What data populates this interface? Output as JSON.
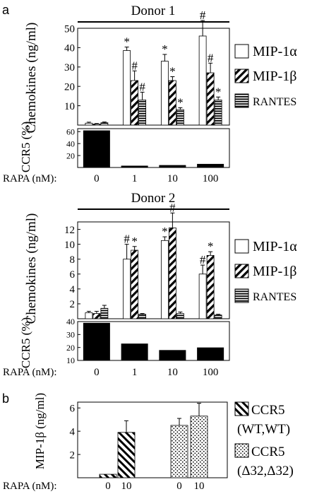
{
  "panel_labels": [
    "a",
    "b"
  ],
  "chart_data": [
    {
      "id": "donor1-chemokines",
      "type": "bar",
      "title": "Donor 1",
      "ylabel": "Chemokines (ng/ml)",
      "xlabel": "RAPA (nM):",
      "categories": [
        "0",
        "1",
        "10",
        "100"
      ],
      "ylim": [
        0,
        50
      ],
      "yticks": [
        10,
        20,
        30,
        40,
        50
      ],
      "series": [
        {
          "name": "MIP-1α",
          "pattern": "white",
          "values": [
            1,
            38.5,
            33,
            46
          ],
          "errors": [
            0.5,
            1.8,
            3.5,
            8
          ],
          "marks": [
            "",
            "*",
            "*",
            "#"
          ]
        },
        {
          "name": "MIP-1β",
          "pattern": "diagonal",
          "values": [
            0.5,
            23,
            23,
            27
          ],
          "errors": [
            0.3,
            5,
            2,
            5
          ],
          "marks": [
            "",
            "#",
            "*",
            "#"
          ]
        },
        {
          "name": "RANTES",
          "pattern": "horizontal",
          "values": [
            1.2,
            13,
            8,
            13
          ],
          "errors": [
            0.4,
            4,
            1,
            1.5
          ],
          "marks": [
            "",
            "#",
            "*",
            "*"
          ]
        }
      ],
      "legend": "right"
    },
    {
      "id": "donor1-ccr5",
      "type": "bar",
      "ylabel": "CCR5 (%)",
      "categories": [
        "0",
        "1",
        "10",
        "100"
      ],
      "ylim": [
        0,
        65
      ],
      "yticks": [
        20,
        40,
        60
      ],
      "series": [
        {
          "values": [
            62,
            3,
            4,
            6
          ]
        }
      ]
    },
    {
      "id": "donor2-chemokines",
      "type": "bar",
      "title": "Donor 2",
      "ylabel": "Chemokines (ng/ml)",
      "xlabel": "RAPA (nM):",
      "categories": [
        "0",
        "1",
        "10",
        "100"
      ],
      "ylim": [
        0,
        13
      ],
      "yticks": [
        2,
        4,
        6,
        8,
        10,
        12
      ],
      "series": [
        {
          "name": "MIP-1α",
          "pattern": "white",
          "values": [
            0.8,
            8,
            10.5,
            6
          ],
          "errors": [
            0.2,
            2,
            0.5,
            1.2
          ],
          "marks": [
            "",
            "#",
            "*",
            "#"
          ]
        },
        {
          "name": "MIP-1β",
          "pattern": "diagonal",
          "values": [
            0.7,
            9.2,
            12.2,
            8.5
          ],
          "errors": [
            0.3,
            0.5,
            2,
            0.5
          ],
          "marks": [
            "",
            "*",
            "#",
            "*"
          ]
        },
        {
          "name": "RANTES",
          "pattern": "horizontal",
          "values": [
            1.4,
            0.6,
            0.7,
            0.5
          ],
          "errors": [
            0.4,
            0.1,
            0.2,
            0.1
          ],
          "marks": [
            "",
            "",
            "",
            ""
          ]
        }
      ],
      "legend": "right"
    },
    {
      "id": "donor2-ccr5",
      "type": "bar",
      "ylabel": "CCR5 (%)",
      "categories": [
        "0",
        "1",
        "10",
        "100"
      ],
      "ylim": [
        10,
        40
      ],
      "yticks": [
        10,
        20,
        30,
        40
      ],
      "series": [
        {
          "values": [
            39,
            23,
            18,
            20
          ]
        }
      ]
    },
    {
      "id": "panel-b",
      "type": "bar",
      "ylabel": "MIP-1β (ng/ml)",
      "xlabel": "RAPA (nM):",
      "categories": [
        "0",
        "10",
        "0",
        "10"
      ],
      "ylim": [
        0,
        6.5
      ],
      "yticks": [
        2,
        4,
        6
      ],
      "bars": [
        {
          "value": 0.3,
          "error": 0,
          "pattern": "diagonal-rev"
        },
        {
          "value": 3.9,
          "error": 1,
          "pattern": "diagonal-rev"
        },
        {
          "value": 4.5,
          "error": 0.6,
          "pattern": "dots"
        },
        {
          "value": 5.3,
          "error": 1.1,
          "pattern": "dots"
        }
      ],
      "legend_entries": [
        {
          "line1": "CCR5",
          "line2": "(WT,WT)",
          "pattern": "diagonal-rev"
        },
        {
          "line1": "CCR5",
          "line2": "(Δ32,Δ32)",
          "pattern": "dots"
        }
      ]
    }
  ]
}
